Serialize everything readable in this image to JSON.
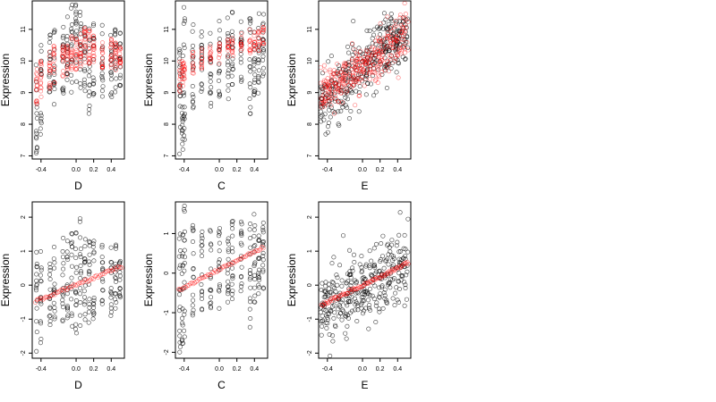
{
  "chart_data": [
    {
      "type": "scatter",
      "xlabel": "D",
      "ylabel": "Expression",
      "xticks": [
        -0.4,
        0.0,
        0.2,
        0.4
      ],
      "xtick_labels": [
        "-0.4",
        "0.0",
        "0.2",
        "0.4"
      ],
      "yticks": [
        7,
        8,
        9,
        10,
        11
      ],
      "ytick_labels": [
        "7",
        "8",
        "9",
        "10",
        "11"
      ],
      "xlim": [
        -0.5,
        0.55
      ],
      "ylim": [
        6.9,
        11.9
      ],
      "x_columns": [
        -0.45,
        -0.4,
        -0.3,
        -0.25,
        -0.15,
        -0.1,
        -0.05,
        0.0,
        0.05,
        0.1,
        0.15,
        0.2,
        0.3,
        0.4,
        0.45,
        0.5
      ],
      "series": [
        {
          "color": "#000000",
          "marker": "circle",
          "n_points": 240,
          "cloud": {
            "type": "column_band",
            "lo": [
              7.0,
              7.5,
              8.8,
              8.6,
              8.9,
              9.4,
              9.0,
              9.3,
              8.8,
              9.0,
              8.3,
              8.9,
              8.8,
              8.7,
              8.9,
              9.2
            ],
            "hi": [
              10.3,
              10.5,
              10.9,
              11.0,
              11.3,
              11.4,
              11.8,
              11.8,
              11.7,
              11.5,
              11.4,
              11.2,
              11.3,
              11.1,
              11.0,
              10.9
            ]
          }
        },
        {
          "color": "#ff0000",
          "marker": "circle",
          "n_points": 240,
          "cloud": {
            "type": "column_band",
            "lo": [
              8.6,
              8.8,
              9.1,
              9.3,
              9.4,
              9.5,
              9.6,
              9.7,
              9.8,
              9.9,
              9.9,
              9.8,
              9.7,
              9.6,
              9.7,
              9.8
            ],
            "hi": [
              9.8,
              10.0,
              10.3,
              10.5,
              10.6,
              10.7,
              10.8,
              10.9,
              11.0,
              11.1,
              11.0,
              10.9,
              10.8,
              10.7,
              10.6,
              10.5
            ]
          }
        }
      ]
    },
    {
      "type": "scatter",
      "xlabel": "C",
      "ylabel": "Expression",
      "xticks": [
        -0.4,
        0.0,
        0.2,
        0.4
      ],
      "xtick_labels": [
        "-0.4",
        "0.0",
        "0.2",
        "0.4"
      ],
      "yticks": [
        7,
        8,
        9,
        10,
        11
      ],
      "ytick_labels": [
        "7",
        "8",
        "9",
        "10",
        "11"
      ],
      "xlim": [
        -0.5,
        0.55
      ],
      "ylim": [
        6.9,
        11.9
      ],
      "x_columns": [
        -0.45,
        -0.42,
        -0.4,
        -0.3,
        -0.2,
        -0.1,
        0.0,
        0.1,
        0.15,
        0.25,
        0.35,
        0.4,
        0.45,
        0.5
      ],
      "series": [
        {
          "color": "#000000",
          "marker": "circle",
          "n_points": 230,
          "cloud": {
            "type": "column_band",
            "lo": [
              7.0,
              7.2,
              7.5,
              8.5,
              8.7,
              8.5,
              8.8,
              8.8,
              9.0,
              9.2,
              8.2,
              8.8,
              8.9,
              9.5
            ],
            "hi": [
              10.5,
              10.8,
              11.8,
              11.2,
              11.0,
              11.0,
              11.3,
              11.5,
              11.6,
              11.5,
              11.5,
              11.4,
              11.5,
              11.6
            ]
          }
        },
        {
          "color": "#ff0000",
          "marker": "circle",
          "n_points": 160,
          "cloud": {
            "type": "column_band",
            "lo": [
              9.0,
              9.2,
              9.3,
              9.6,
              9.7,
              9.8,
              9.9,
              10.0,
              10.1,
              10.2,
              10.2,
              10.3,
              10.3,
              10.4
            ],
            "hi": [
              10.0,
              10.1,
              10.2,
              10.3,
              10.4,
              10.5,
              10.6,
              10.7,
              10.8,
              10.9,
              11.0,
              11.0,
              11.1,
              11.1
            ]
          }
        }
      ]
    },
    {
      "type": "scatter",
      "xlabel": "E",
      "ylabel": "Expression",
      "xticks": [
        -0.4,
        0.0,
        0.2,
        0.4
      ],
      "xtick_labels": [
        "-0.4",
        "0.0",
        "0.2",
        "0.4"
      ],
      "yticks": [
        7,
        8,
        9,
        10,
        11
      ],
      "ytick_labels": [
        "7",
        "8",
        "9",
        "10",
        "11"
      ],
      "xlim": [
        -0.5,
        0.55
      ],
      "ylim": [
        6.9,
        11.9
      ],
      "series": [
        {
          "color": "#000000",
          "marker": "circle",
          "n_points": 320,
          "cloud": {
            "type": "diagonal_band",
            "start": [
              -0.48,
              8.6
            ],
            "end": [
              0.52,
              11.0
            ],
            "spread": 1.0
          }
        },
        {
          "color": "#ff0000",
          "marker": "circle",
          "n_points": 320,
          "cloud": {
            "type": "diagonal_band",
            "start": [
              -0.48,
              8.9
            ],
            "end": [
              0.52,
              10.9
            ],
            "spread": 0.75
          }
        }
      ]
    },
    {
      "type": "scatter",
      "xlabel": "D",
      "ylabel": "Expression",
      "xticks": [
        -0.4,
        0.0,
        0.2,
        0.4
      ],
      "xtick_labels": [
        "-0.4",
        "0.0",
        "0.2",
        "0.4"
      ],
      "yticks": [
        -2,
        -1,
        0,
        1,
        2
      ],
      "ytick_labels": [
        "-2",
        "-1",
        "0",
        "1",
        "2"
      ],
      "xlim": [
        -0.5,
        0.55
      ],
      "ylim": [
        -2.15,
        2.45
      ],
      "x_columns": [
        -0.45,
        -0.4,
        -0.3,
        -0.25,
        -0.15,
        -0.1,
        -0.05,
        0.0,
        0.05,
        0.1,
        0.15,
        0.2,
        0.3,
        0.4,
        0.45,
        0.5
      ],
      "series": [
        {
          "color": "#000000",
          "marker": "circle",
          "n_points": 240,
          "cloud": {
            "type": "column_band",
            "lo": [
              -2.0,
              -1.8,
              -1.3,
              -1.2,
              -1.1,
              -1.0,
              -1.4,
              -1.5,
              -1.2,
              -1.1,
              -1.3,
              -1.0,
              -0.8,
              -0.9,
              -0.8,
              -0.4
            ],
            "hi": [
              1.2,
              1.0,
              1.0,
              1.2,
              1.4,
              1.3,
              1.6,
              2.2,
              2.0,
              1.8,
              1.5,
              1.4,
              1.3,
              1.2,
              1.2,
              1.0
            ]
          }
        },
        {
          "color": "#ff0000",
          "marker": "circle",
          "n_points": 60,
          "cloud": {
            "type": "line",
            "start": [
              -0.48,
              -0.5
            ],
            "end": [
              0.52,
              0.55
            ],
            "spread": 0.08
          }
        }
      ]
    },
    {
      "type": "scatter",
      "xlabel": "C",
      "ylabel": "Expression",
      "xticks": [
        -0.4,
        0.0,
        0.2,
        0.4
      ],
      "xtick_labels": [
        "-0.4",
        "0.0",
        "0.2",
        "0.4"
      ],
      "yticks": [
        -2,
        -1,
        0,
        1
      ],
      "ytick_labels": [
        "-2",
        "-1",
        "0",
        "1"
      ],
      "xlim": [
        -0.5,
        0.55
      ],
      "ylim": [
        -2.15,
        1.8
      ],
      "x_columns": [
        -0.45,
        -0.42,
        -0.4,
        -0.3,
        -0.2,
        -0.1,
        0.0,
        0.1,
        0.15,
        0.25,
        0.35,
        0.4,
        0.45,
        0.5
      ],
      "series": [
        {
          "color": "#000000",
          "marker": "circle",
          "n_points": 230,
          "cloud": {
            "type": "column_band",
            "lo": [
              -2.0,
              -1.8,
              -1.9,
              -1.2,
              -1.0,
              -1.0,
              -0.9,
              -0.9,
              -0.8,
              -0.6,
              -1.4,
              -0.8,
              -0.6,
              -0.4
            ],
            "hi": [
              1.0,
              1.1,
              1.7,
              1.3,
              1.2,
              1.1,
              1.2,
              1.3,
              1.4,
              1.4,
              1.6,
              1.5,
              1.4,
              1.3
            ]
          }
        },
        {
          "color": "#ff0000",
          "marker": "circle",
          "n_points": 60,
          "cloud": {
            "type": "line",
            "start": [
              -0.48,
              -0.45
            ],
            "end": [
              0.5,
              0.65
            ],
            "spread": 0.06
          }
        }
      ]
    },
    {
      "type": "scatter",
      "xlabel": "E",
      "ylabel": "Expression",
      "xticks": [
        -0.4,
        0.0,
        0.2,
        0.4
      ],
      "xtick_labels": [
        "-0.4",
        "0.0",
        "0.2",
        "0.4"
      ],
      "yticks": [
        -2,
        -1,
        0,
        1,
        2
      ],
      "ytick_labels": [
        "-2",
        "-1",
        "0",
        "1",
        "2"
      ],
      "xlim": [
        -0.5,
        0.55
      ],
      "ylim": [
        -2.15,
        2.45
      ],
      "series": [
        {
          "color": "#000000",
          "marker": "circle",
          "n_points": 320,
          "cloud": {
            "type": "diagonal_band",
            "start": [
              -0.48,
              -0.8
            ],
            "end": [
              0.52,
              0.7
            ],
            "spread": 1.1
          }
        },
        {
          "color": "#ff0000",
          "marker": "circle",
          "n_points": 90,
          "cloud": {
            "type": "line",
            "start": [
              -0.48,
              -0.6
            ],
            "end": [
              0.52,
              0.65
            ],
            "spread": 0.09
          }
        }
      ]
    }
  ]
}
